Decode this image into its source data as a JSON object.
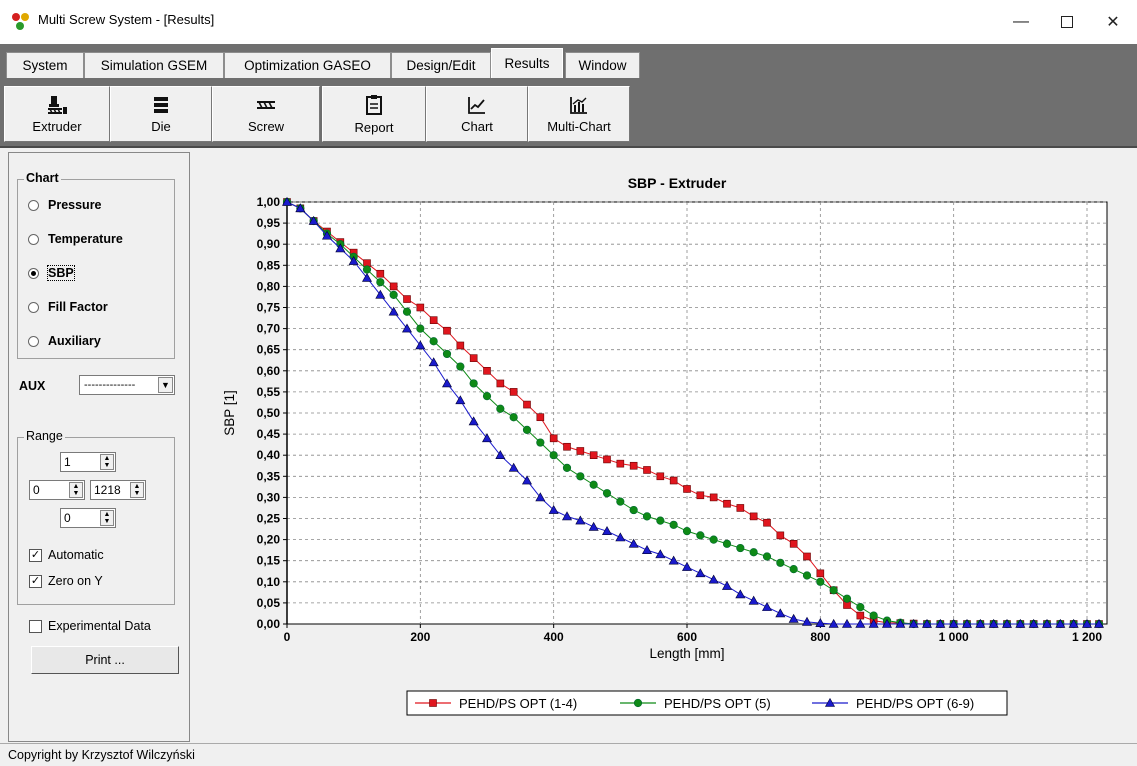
{
  "window": {
    "title": "Multi Screw System - [Results]"
  },
  "tabs": [
    "System",
    "Simulation GSEM",
    "Optimization GASEO",
    "Design/Edit",
    "Results",
    "Window"
  ],
  "active_tab": "Results",
  "toolbar": {
    "buttons": [
      "Extruder",
      "Die",
      "Screw",
      "Report",
      "Chart",
      "Multi-Chart"
    ]
  },
  "left_panel": {
    "chart_group_label": "Chart",
    "chart_options": [
      "Pressure",
      "Temperature",
      "SBP",
      "Fill Factor",
      "Auxiliary"
    ],
    "selected_option": "SBP",
    "aux_label": "AUX",
    "aux_value": "--------------",
    "range_label": "Range",
    "range_step": "1",
    "range_from": "0",
    "range_to": "1218",
    "range_offset": "0",
    "automatic_label": "Automatic",
    "automatic_checked": true,
    "zero_on_y_label": "Zero on Y",
    "zero_on_y_checked": true,
    "experimental_label": "Experimental Data",
    "experimental_checked": false,
    "print_label": "Print ..."
  },
  "status": {
    "text": "Copyright by Krzysztof Wilczyński"
  },
  "chart_data": {
    "type": "line",
    "title": "SBP - Extruder",
    "xlabel": "Length [mm]",
    "ylabel": "SBP [1]",
    "xlim": [
      0,
      1230
    ],
    "ylim": [
      0,
      1.0
    ],
    "x_ticks": [
      0,
      200,
      400,
      600,
      800,
      1000,
      1200
    ],
    "x_tick_labels": [
      "0",
      "200",
      "400",
      "600",
      "800",
      "1 000",
      "1 200"
    ],
    "y_ticks": [
      0,
      0.05,
      0.1,
      0.15,
      0.2,
      0.25,
      0.3,
      0.35,
      0.4,
      0.45,
      0.5,
      0.55,
      0.6,
      0.65,
      0.7,
      0.75,
      0.8,
      0.85,
      0.9,
      0.95,
      1.0
    ],
    "y_tick_labels": [
      "0,00",
      "0,05",
      "0,10",
      "0,15",
      "0,20",
      "0,25",
      "0,30",
      "0,35",
      "0,40",
      "0,45",
      "0,50",
      "0,55",
      "0,60",
      "0,65",
      "0,70",
      "0,75",
      "0,80",
      "0,85",
      "0,90",
      "0,95",
      "1,00"
    ],
    "grid": true,
    "legend_position": "bottom",
    "series": [
      {
        "name": "PEHD/PS OPT (1-4)",
        "color": "#e0161e",
        "marker": "square",
        "x": [
          0,
          20,
          40,
          60,
          80,
          100,
          120,
          140,
          160,
          180,
          200,
          220,
          240,
          260,
          280,
          300,
          320,
          340,
          360,
          380,
          400,
          420,
          440,
          460,
          480,
          500,
          520,
          540,
          560,
          580,
          600,
          620,
          640,
          660,
          680,
          700,
          720,
          740,
          760,
          780,
          800,
          820,
          840,
          860,
          880,
          900,
          920,
          940,
          960,
          980,
          1000,
          1020,
          1040,
          1060,
          1080,
          1100,
          1120,
          1140,
          1160,
          1180,
          1200,
          1218
        ],
        "y": [
          1.0,
          0.985,
          0.955,
          0.93,
          0.905,
          0.88,
          0.855,
          0.83,
          0.8,
          0.77,
          0.75,
          0.72,
          0.695,
          0.66,
          0.63,
          0.6,
          0.57,
          0.55,
          0.52,
          0.49,
          0.44,
          0.42,
          0.41,
          0.4,
          0.39,
          0.38,
          0.375,
          0.365,
          0.35,
          0.34,
          0.32,
          0.305,
          0.3,
          0.285,
          0.275,
          0.255,
          0.24,
          0.21,
          0.19,
          0.16,
          0.12,
          0.08,
          0.045,
          0.02,
          0.008,
          0.003,
          0.002,
          0.001,
          0.0,
          0.0,
          0.0,
          0.0,
          0.0,
          0.0,
          0.0,
          0.0,
          0.0,
          0.0,
          0.0,
          0.0,
          0.0,
          0.0
        ]
      },
      {
        "name": "PEHD/PS OPT (5)",
        "color": "#0e8a16",
        "marker": "circle",
        "x": [
          0,
          20,
          40,
          60,
          80,
          100,
          120,
          140,
          160,
          180,
          200,
          220,
          240,
          260,
          280,
          300,
          320,
          340,
          360,
          380,
          400,
          420,
          440,
          460,
          480,
          500,
          520,
          540,
          560,
          580,
          600,
          620,
          640,
          660,
          680,
          700,
          720,
          740,
          760,
          780,
          800,
          820,
          840,
          860,
          880,
          900,
          920,
          940,
          960,
          980,
          1000,
          1020,
          1040,
          1060,
          1080,
          1100,
          1120,
          1140,
          1160,
          1180,
          1200,
          1218
        ],
        "y": [
          1.0,
          0.985,
          0.955,
          0.925,
          0.9,
          0.87,
          0.84,
          0.81,
          0.78,
          0.74,
          0.7,
          0.67,
          0.64,
          0.61,
          0.57,
          0.54,
          0.51,
          0.49,
          0.46,
          0.43,
          0.4,
          0.37,
          0.35,
          0.33,
          0.31,
          0.29,
          0.27,
          0.255,
          0.245,
          0.235,
          0.22,
          0.21,
          0.2,
          0.19,
          0.18,
          0.17,
          0.16,
          0.145,
          0.13,
          0.115,
          0.1,
          0.08,
          0.06,
          0.04,
          0.02,
          0.008,
          0.003,
          0.0,
          0.0,
          0.0,
          0.0,
          0.0,
          0.0,
          0.0,
          0.0,
          0.0,
          0.0,
          0.0,
          0.0,
          0.0,
          0.0,
          0.0
        ]
      },
      {
        "name": "PEHD/PS OPT (6-9)",
        "color": "#1a1acc",
        "marker": "triangle",
        "x": [
          0,
          20,
          40,
          60,
          80,
          100,
          120,
          140,
          160,
          180,
          200,
          220,
          240,
          260,
          280,
          300,
          320,
          340,
          360,
          380,
          400,
          420,
          440,
          460,
          480,
          500,
          520,
          540,
          560,
          580,
          600,
          620,
          640,
          660,
          680,
          700,
          720,
          740,
          760,
          780,
          800,
          820,
          840,
          860,
          880,
          900,
          920,
          940,
          960,
          980,
          1000,
          1020,
          1040,
          1060,
          1080,
          1100,
          1120,
          1140,
          1160,
          1180,
          1200,
          1218
        ],
        "y": [
          1.0,
          0.985,
          0.955,
          0.92,
          0.89,
          0.86,
          0.82,
          0.78,
          0.74,
          0.7,
          0.66,
          0.62,
          0.57,
          0.53,
          0.48,
          0.44,
          0.4,
          0.37,
          0.34,
          0.3,
          0.27,
          0.255,
          0.245,
          0.23,
          0.22,
          0.205,
          0.19,
          0.175,
          0.165,
          0.15,
          0.135,
          0.12,
          0.105,
          0.09,
          0.07,
          0.055,
          0.04,
          0.025,
          0.012,
          0.005,
          0.002,
          0.0,
          0.0,
          0.0,
          0.0,
          0.0,
          0.0,
          0.0,
          0.0,
          0.0,
          0.0,
          0.0,
          0.0,
          0.0,
          0.0,
          0.0,
          0.0,
          0.0,
          0.0,
          0.0,
          0.0,
          0.0
        ]
      }
    ]
  }
}
